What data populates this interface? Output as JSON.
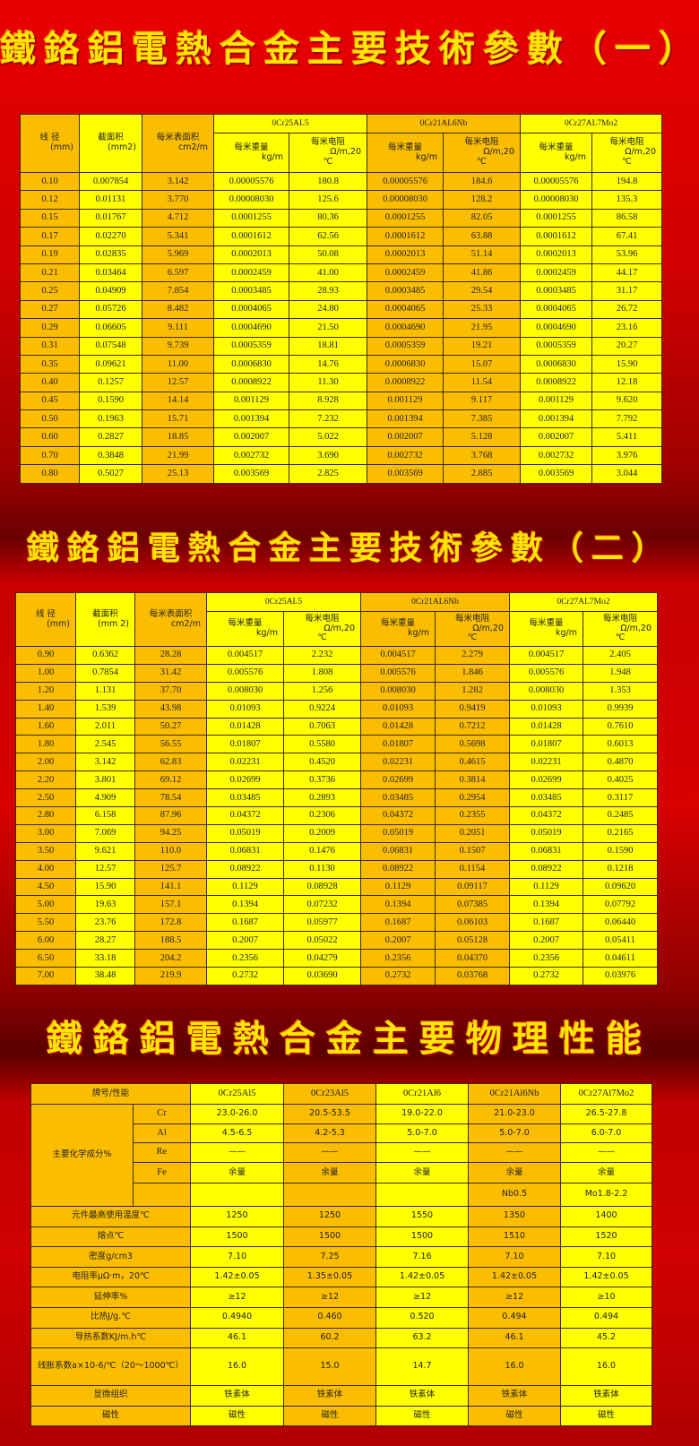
{
  "titles": {
    "t1": "鐵鉻鋁電熱合金主要技術參數（一）",
    "t2": "鐵鉻鋁電熱合金主要技術參數（二）",
    "t3": "鐵鉻鋁電熱合金主要物理性能"
  },
  "colors": {
    "yellow": "#ffff00",
    "orange": "#fbbd00",
    "background": "#d00000",
    "title": "#ffe600"
  },
  "spec_header": {
    "diameter": "线 径",
    "diameter_unit": "(mm)",
    "area": "截面积",
    "area_unit_t1": "(mm2)",
    "area_unit_t2": "(mm 2)",
    "surface": "每米表面积",
    "surface_unit": "cm2/m",
    "alloys": [
      "0Cr25AL5",
      "0Cr21AL6Nb",
      "0Cr27AL7Mo2"
    ],
    "weight": "每米重量",
    "weight_unit": "kg/m",
    "resistance": "每米电阻",
    "resistance_unit": "Ω/m,20",
    "resistance_unit2": "℃"
  },
  "table1": [
    [
      "0.10",
      "0.007854",
      "3.142",
      "0.00005576",
      "180.8",
      "0.00005576",
      "184.6",
      "0.00005576",
      "194.8"
    ],
    [
      "0.12",
      "0.01131",
      "3.770",
      "0.00008030",
      "125.6",
      "0.00008030",
      "128.2",
      "0.00008030",
      "135.3"
    ],
    [
      "0.15",
      "0.01767",
      "4.712",
      "0.0001255",
      "80.36",
      "0.0001255",
      "82.05",
      "0.0001255",
      "86.58"
    ],
    [
      "0.17",
      "0.02270",
      "5.341",
      "0.0001612",
      "62.56",
      "0.0001612",
      "63.88",
      "0.0001612",
      "67.41"
    ],
    [
      "0.19",
      "0.02835",
      "5.969",
      "0.0002013",
      "50.08",
      "0.0002013",
      "51.14",
      "0.0002013",
      "53.96"
    ],
    [
      "0.21",
      "0.03464",
      "6.597",
      "0.0002459",
      "41.00",
      "0.0002459",
      "41.86",
      "0.0002459",
      "44.17"
    ],
    [
      "0.25",
      "0.04909",
      "7.854",
      "0.0003485",
      "28.93",
      "0.0003485",
      "29.54",
      "0.0003485",
      "31.17"
    ],
    [
      "0.27",
      "0.05726",
      "8.482",
      "0.0004065",
      "24.80",
      "0.0004065",
      "25.33",
      "0.0004065",
      "26.72"
    ],
    [
      "0.29",
      "0.06605",
      "9.111",
      "0.0004690",
      "21.50",
      "0.0004690",
      "21.95",
      "0.0004690",
      "23.16"
    ],
    [
      "0.31",
      "0.07548",
      "9.739",
      "0.0005359",
      "18.81",
      "0.0005359",
      "19.21",
      "0.0005359",
      "20.27"
    ],
    [
      "0.35",
      "0.09621",
      "11.00",
      "0.0006830",
      "14.76",
      "0.0006830",
      "15.07",
      "0.0006830",
      "15.90"
    ],
    [
      "0.40",
      "0.1257",
      "12.57",
      "0.0008922",
      "11.30",
      "0.0008922",
      "11.54",
      "0.0008922",
      "12.18"
    ],
    [
      "0.45",
      "0.1590",
      "14.14",
      "0.001129",
      "8.928",
      "0.001129",
      "9.117",
      "0.001129",
      "9.620"
    ],
    [
      "0.50",
      "0.1963",
      "15.71",
      "0.001394",
      "7.232",
      "0.001394",
      "7.385",
      "0.001394",
      "7.792"
    ],
    [
      "0.60",
      "0.2827",
      "18.85",
      "0.002007",
      "5.022",
      "0.002007",
      "5.128",
      "0.002007",
      "5.411"
    ],
    [
      "0.70",
      "0.3848",
      "21.99",
      "0.002732",
      "3.690",
      "0.002732",
      "3.768",
      "0.002732",
      "3.976"
    ],
    [
      "0.80",
      "0.5027",
      "25.13",
      "0.003569",
      "2.825",
      "0.003569",
      "2.885",
      "0.003569",
      "3.044"
    ]
  ],
  "table2": [
    [
      "0.90",
      "0.6362",
      "28.28",
      "0.004517",
      "2.232",
      "0.004517",
      "2.279",
      "0.004517",
      "2.405"
    ],
    [
      "1.00",
      "0.7854",
      "31.42",
      "0.005576",
      "1.808",
      "0.005576",
      "1.846",
      "0.005576",
      "1.948"
    ],
    [
      "1.20",
      "1.131",
      "37.70",
      "0.008030",
      "1.256",
      "0.008030",
      "1.282",
      "0.008030",
      "1.353"
    ],
    [
      "1.40",
      "1.539",
      "43.98",
      "0.01093",
      "0.9224",
      "0.01093",
      "0.9419",
      "0.01093",
      "0.9939"
    ],
    [
      "1.60",
      "2.011",
      "50.27",
      "0.01428",
      "0.7063",
      "0.01428",
      "0.7212",
      "0.01428",
      "0.7610"
    ],
    [
      "1.80",
      "2.545",
      "56.55",
      "0.01807",
      "0.5580",
      "0.01807",
      "0.5698",
      "0.01807",
      "0.6013"
    ],
    [
      "2.00",
      "3.142",
      "62.83",
      "0.02231",
      "0.4520",
      "0.02231",
      "0.4615",
      "0.02231",
      "0.4870"
    ],
    [
      "2.20",
      "3.801",
      "69.12",
      "0.02699",
      "0.3736",
      "0.02699",
      "0.3814",
      "0.02699",
      "0.4025"
    ],
    [
      "2.50",
      "4.909",
      "78.54",
      "0.03485",
      "0.2893",
      "0.03485",
      "0.2954",
      "0.03485",
      "0.3117"
    ],
    [
      "2.80",
      "6.158",
      "87.96",
      "0.04372",
      "0.2306",
      "0.04372",
      "0.2355",
      "0.04372",
      "0.2485"
    ],
    [
      "3.00",
      "7.069",
      "94.25",
      "0.05019",
      "0.2009",
      "0.05019",
      "0.2051",
      "0.05019",
      "0.2165"
    ],
    [
      "3.50",
      "9.621",
      "110.0",
      "0.06831",
      "0.1476",
      "0.06831",
      "0.1507",
      "0.06831",
      "0.1590"
    ],
    [
      "4.00",
      "12.57",
      "125.7",
      "0.08922",
      "0.1130",
      "0.08922",
      "0.1154",
      "0.08922",
      "0.1218"
    ],
    [
      "4.50",
      "15.90",
      "141.1",
      "0.1129",
      "0.08928",
      "0.1129",
      "0.09117",
      "0.1129",
      "0.09620"
    ],
    [
      "5.00",
      "19.63",
      "157.1",
      "0.1394",
      "0.07232",
      "0.1394",
      "0.07385",
      "0.1394",
      "0.07792"
    ],
    [
      "5.50",
      "23.76",
      "172.8",
      "0.1687",
      "0.05977",
      "0.1687",
      "0.06103",
      "0.1687",
      "0.06440"
    ],
    [
      "6.00",
      "28.27",
      "188.5",
      "0.2007",
      "0.05022",
      "0.2007",
      "0.05128",
      "0.2007",
      "0.05411"
    ],
    [
      "6.50",
      "33.18",
      "204.2",
      "0.2356",
      "0.04279",
      "0.2356",
      "0.04370",
      "0.2356",
      "0.04611"
    ],
    [
      "7.00",
      "38.48",
      "219.9",
      "0.2732",
      "0.03690",
      "0.2732",
      "0.03768",
      "0.2732",
      "0.03976"
    ]
  ],
  "physical": {
    "header_label": "牌号/性能",
    "grades": [
      "0Cr25Al5",
      "0Cr23Al5",
      "0Cr21Al6",
      "0Cr21Al6Nb",
      "0Cr27Al7Mo2"
    ],
    "composition_label": "主要化学成分%",
    "composition": [
      {
        "element": "Cr",
        "values": [
          "23.0-26.0",
          "20.5-53.5",
          "19.0-22.0",
          "21.0-23.0",
          "26.5-27.8"
        ]
      },
      {
        "element": "Al",
        "values": [
          "4.5-6.5",
          "4.2-5.3",
          "5.0-7.0",
          "5.0-7.0",
          "6.0-7.0"
        ]
      },
      {
        "element": "Re",
        "values": [
          "——",
          "——",
          "——",
          "——",
          "——"
        ]
      },
      {
        "element": "Fe",
        "values": [
          "余量",
          "余量",
          "余量",
          "余量",
          "余量"
        ]
      },
      {
        "element": "",
        "values": [
          "",
          "",
          "",
          "Nb0.5",
          "Mo1.8-2.2"
        ]
      }
    ],
    "properties": [
      {
        "label": "元件最高使用温度℃",
        "values": [
          "1250",
          "1250",
          "1550",
          "1350",
          "1400"
        ]
      },
      {
        "label": "熔点℃",
        "values": [
          "1500",
          "1500",
          "1500",
          "1510",
          "1520"
        ]
      },
      {
        "label": "密度g/cm3",
        "values": [
          "7.10",
          "7.25",
          "7.16",
          "7.10",
          "7.10"
        ]
      },
      {
        "label": "电阻率μΩ·m，20℃",
        "values": [
          "1.42±0.05",
          "1.35±0.05",
          "1.42±0.05",
          "1.42±0.05",
          "1.42±0.05"
        ]
      },
      {
        "label": "延伸率%",
        "values": [
          "≥12",
          "≥12",
          "≥12",
          "≥12",
          "≥10"
        ]
      },
      {
        "label": "比热J/g.℃",
        "values": [
          "0.4940",
          "0.460",
          "0.520",
          "0.494",
          "0.494"
        ]
      },
      {
        "label": "导热系数KJ/m.h℃",
        "values": [
          "46.1",
          "60.2",
          "63.2",
          "46.1",
          "45.2"
        ]
      },
      {
        "label": "线胀系数a×10-6/℃（20～1000℃）",
        "values": [
          "16.0",
          "15.0",
          "14.7",
          "16.0",
          "16.0"
        ]
      },
      {
        "label": "显微组织",
        "values": [
          "铁素体",
          "铁素体",
          "铁素体",
          "铁素体",
          "铁素体"
        ]
      },
      {
        "label": "磁性",
        "values": [
          "磁性",
          "磁性",
          "磁性",
          "磁性",
          "磁性"
        ]
      }
    ]
  }
}
